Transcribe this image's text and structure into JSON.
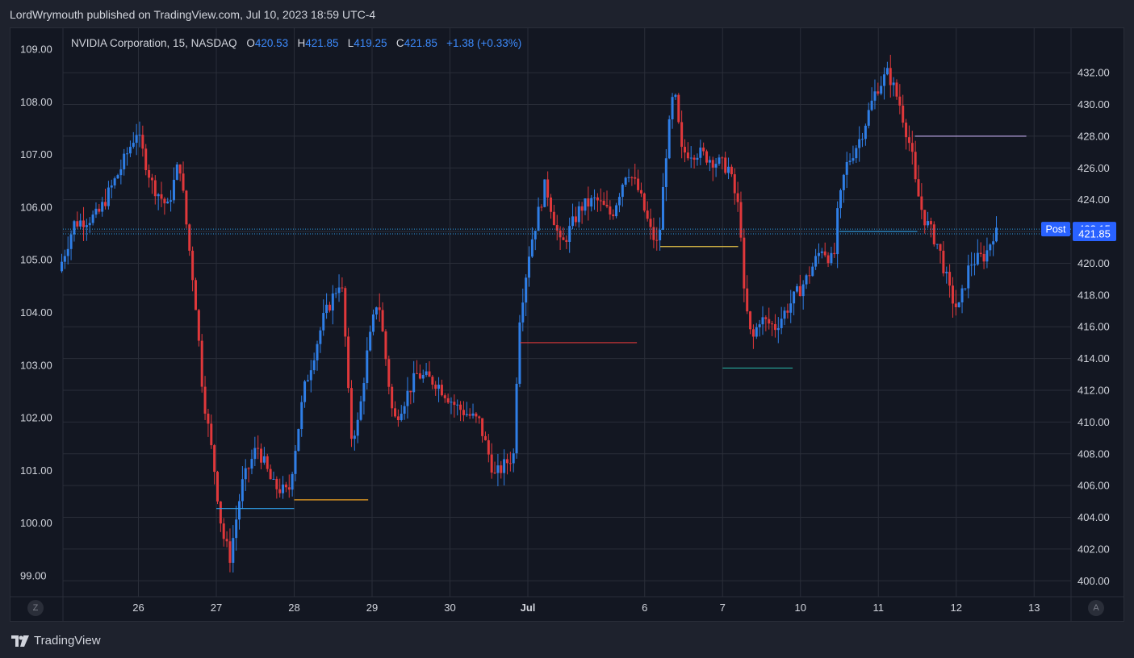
{
  "publisher": "LordWrymouth published on TradingView.com, Jul 10, 2023 18:59 UTC-4",
  "legend": {
    "title": "NVIDIA Corporation, 15, NASDAQ",
    "o_label": "O",
    "o": "420.53",
    "h_label": "H",
    "h": "421.85",
    "l_label": "L",
    "l": "419.25",
    "c_label": "C",
    "c": "421.85",
    "change": "+1.38 (+0.33%)"
  },
  "footer": {
    "logo_text": "TradingView",
    "z_button": "Z",
    "a_button": "A"
  },
  "colors": {
    "up": "#2f7ee6",
    "down": "#e0383b",
    "bg": "#131722",
    "grid": "#2a2e39",
    "accent": "#2962ff"
  },
  "chart_data": {
    "type": "candlestick",
    "left_axis": {
      "ticks": [
        "109.00",
        "108.00",
        "107.00",
        "106.00",
        "105.00",
        "104.00",
        "103.00",
        "102.00",
        "101.00",
        "100.00",
        "99.00"
      ],
      "range": [
        98.6,
        109.4
      ]
    },
    "right_axis": {
      "ticks": [
        "432.00",
        "430.00",
        "428.00",
        "426.00",
        "424.00",
        "422.00",
        "420.00",
        "418.00",
        "416.00",
        "414.00",
        "412.00",
        "410.00",
        "408.00",
        "406.00",
        "404.00",
        "402.00",
        "400.00"
      ],
      "range": [
        399,
        434.8
      ]
    },
    "x_ticks": [
      "26",
      "27",
      "28",
      "29",
      "30",
      "Jul",
      "6",
      "7",
      "10",
      "11",
      "12",
      "13"
    ],
    "post_label": "Post",
    "post_price": "422.15",
    "last_price": "421.85",
    "path_anchors": [
      {
        "t": 0.0,
        "p": 419.5
      },
      {
        "t": 0.2,
        "p": 422.5
      },
      {
        "t": 0.5,
        "p": 423
      },
      {
        "t": 0.8,
        "p": 426
      },
      {
        "t": 1.0,
        "p": 428.3
      },
      {
        "t": 1.2,
        "p": 425
      },
      {
        "t": 1.4,
        "p": 423.5
      },
      {
        "t": 1.55,
        "p": 426.5
      },
      {
        "t": 1.65,
        "p": 422
      },
      {
        "t": 1.75,
        "p": 418
      },
      {
        "t": 1.85,
        "p": 412
      },
      {
        "t": 2.0,
        "p": 407
      },
      {
        "t": 2.1,
        "p": 403
      },
      {
        "t": 2.2,
        "p": 401.5
      },
      {
        "t": 2.35,
        "p": 406
      },
      {
        "t": 2.55,
        "p": 408.5
      },
      {
        "t": 2.75,
        "p": 406
      },
      {
        "t": 2.95,
        "p": 405.5
      },
      {
        "t": 3.15,
        "p": 412
      },
      {
        "t": 3.4,
        "p": 416.5
      },
      {
        "t": 3.6,
        "p": 418.8
      },
      {
        "t": 3.65,
        "p": 418
      },
      {
        "t": 3.75,
        "p": 409
      },
      {
        "t": 3.85,
        "p": 410
      },
      {
        "t": 3.95,
        "p": 414
      },
      {
        "t": 4.1,
        "p": 418
      },
      {
        "t": 4.3,
        "p": 410
      },
      {
        "t": 4.6,
        "p": 413
      },
      {
        "t": 4.85,
        "p": 412.5
      },
      {
        "t": 5.1,
        "p": 411
      },
      {
        "t": 5.4,
        "p": 410
      },
      {
        "t": 5.6,
        "p": 406.6
      },
      {
        "t": 5.85,
        "p": 408
      },
      {
        "t": 5.9,
        "p": 416
      },
      {
        "t": 6.05,
        "p": 421
      },
      {
        "t": 6.25,
        "p": 425
      },
      {
        "t": 6.45,
        "p": 421
      },
      {
        "t": 6.7,
        "p": 423.5
      },
      {
        "t": 6.9,
        "p": 424
      },
      {
        "t": 7.1,
        "p": 423
      },
      {
        "t": 7.3,
        "p": 426
      },
      {
        "t": 7.45,
        "p": 424.5
      },
      {
        "t": 7.6,
        "p": 422
      },
      {
        "t": 7.7,
        "p": 421
      },
      {
        "t": 7.8,
        "p": 427
      },
      {
        "t": 7.9,
        "p": 431
      },
      {
        "t": 8.0,
        "p": 427
      },
      {
        "t": 8.2,
        "p": 427
      },
      {
        "t": 8.4,
        "p": 426.5
      },
      {
        "t": 8.6,
        "p": 426
      },
      {
        "t": 8.75,
        "p": 423
      },
      {
        "t": 8.8,
        "p": 418
      },
      {
        "t": 8.9,
        "p": 415
      },
      {
        "t": 9.0,
        "p": 416.5
      },
      {
        "t": 9.2,
        "p": 416
      },
      {
        "t": 9.4,
        "p": 417.5
      },
      {
        "t": 9.6,
        "p": 419
      },
      {
        "t": 9.8,
        "p": 421
      },
      {
        "t": 9.95,
        "p": 420
      },
      {
        "t": 10.0,
        "p": 423
      },
      {
        "t": 10.1,
        "p": 426
      },
      {
        "t": 10.3,
        "p": 428
      },
      {
        "t": 10.5,
        "p": 431
      },
      {
        "t": 10.65,
        "p": 432
      },
      {
        "t": 10.8,
        "p": 430
      },
      {
        "t": 10.95,
        "p": 427
      },
      {
        "t": 11.0,
        "p": 425
      },
      {
        "t": 11.1,
        "p": 423
      },
      {
        "t": 11.3,
        "p": 421
      },
      {
        "t": 11.45,
        "p": 418
      },
      {
        "t": 11.55,
        "p": 417
      },
      {
        "t": 11.7,
        "p": 420
      },
      {
        "t": 11.9,
        "p": 420.5
      },
      {
        "t": 12.0,
        "p": 421.85
      }
    ],
    "horizontal_rays": [
      {
        "price": 428.0,
        "t_start": 10.97,
        "t_end": 12.4,
        "color": "#b39ddb"
      },
      {
        "price": 421.05,
        "t_start": 7.7,
        "t_end": 8.7,
        "color": "#e8c547"
      },
      {
        "price": 415.0,
        "t_start": 5.9,
        "t_end": 7.4,
        "color": "#e0383b"
      },
      {
        "price": 413.4,
        "t_start": 8.5,
        "t_end": 9.4,
        "color": "#26a69a"
      },
      {
        "price": 404.55,
        "t_start": 2.0,
        "t_end": 3.0,
        "color": "#2f9ee6"
      },
      {
        "price": 405.1,
        "t_start": 3.0,
        "t_end": 3.95,
        "color": "#f5a623"
      },
      {
        "price": 422.0,
        "t_start": 10.0,
        "t_end": 11.0,
        "color": "#2f9ee6"
      }
    ]
  }
}
